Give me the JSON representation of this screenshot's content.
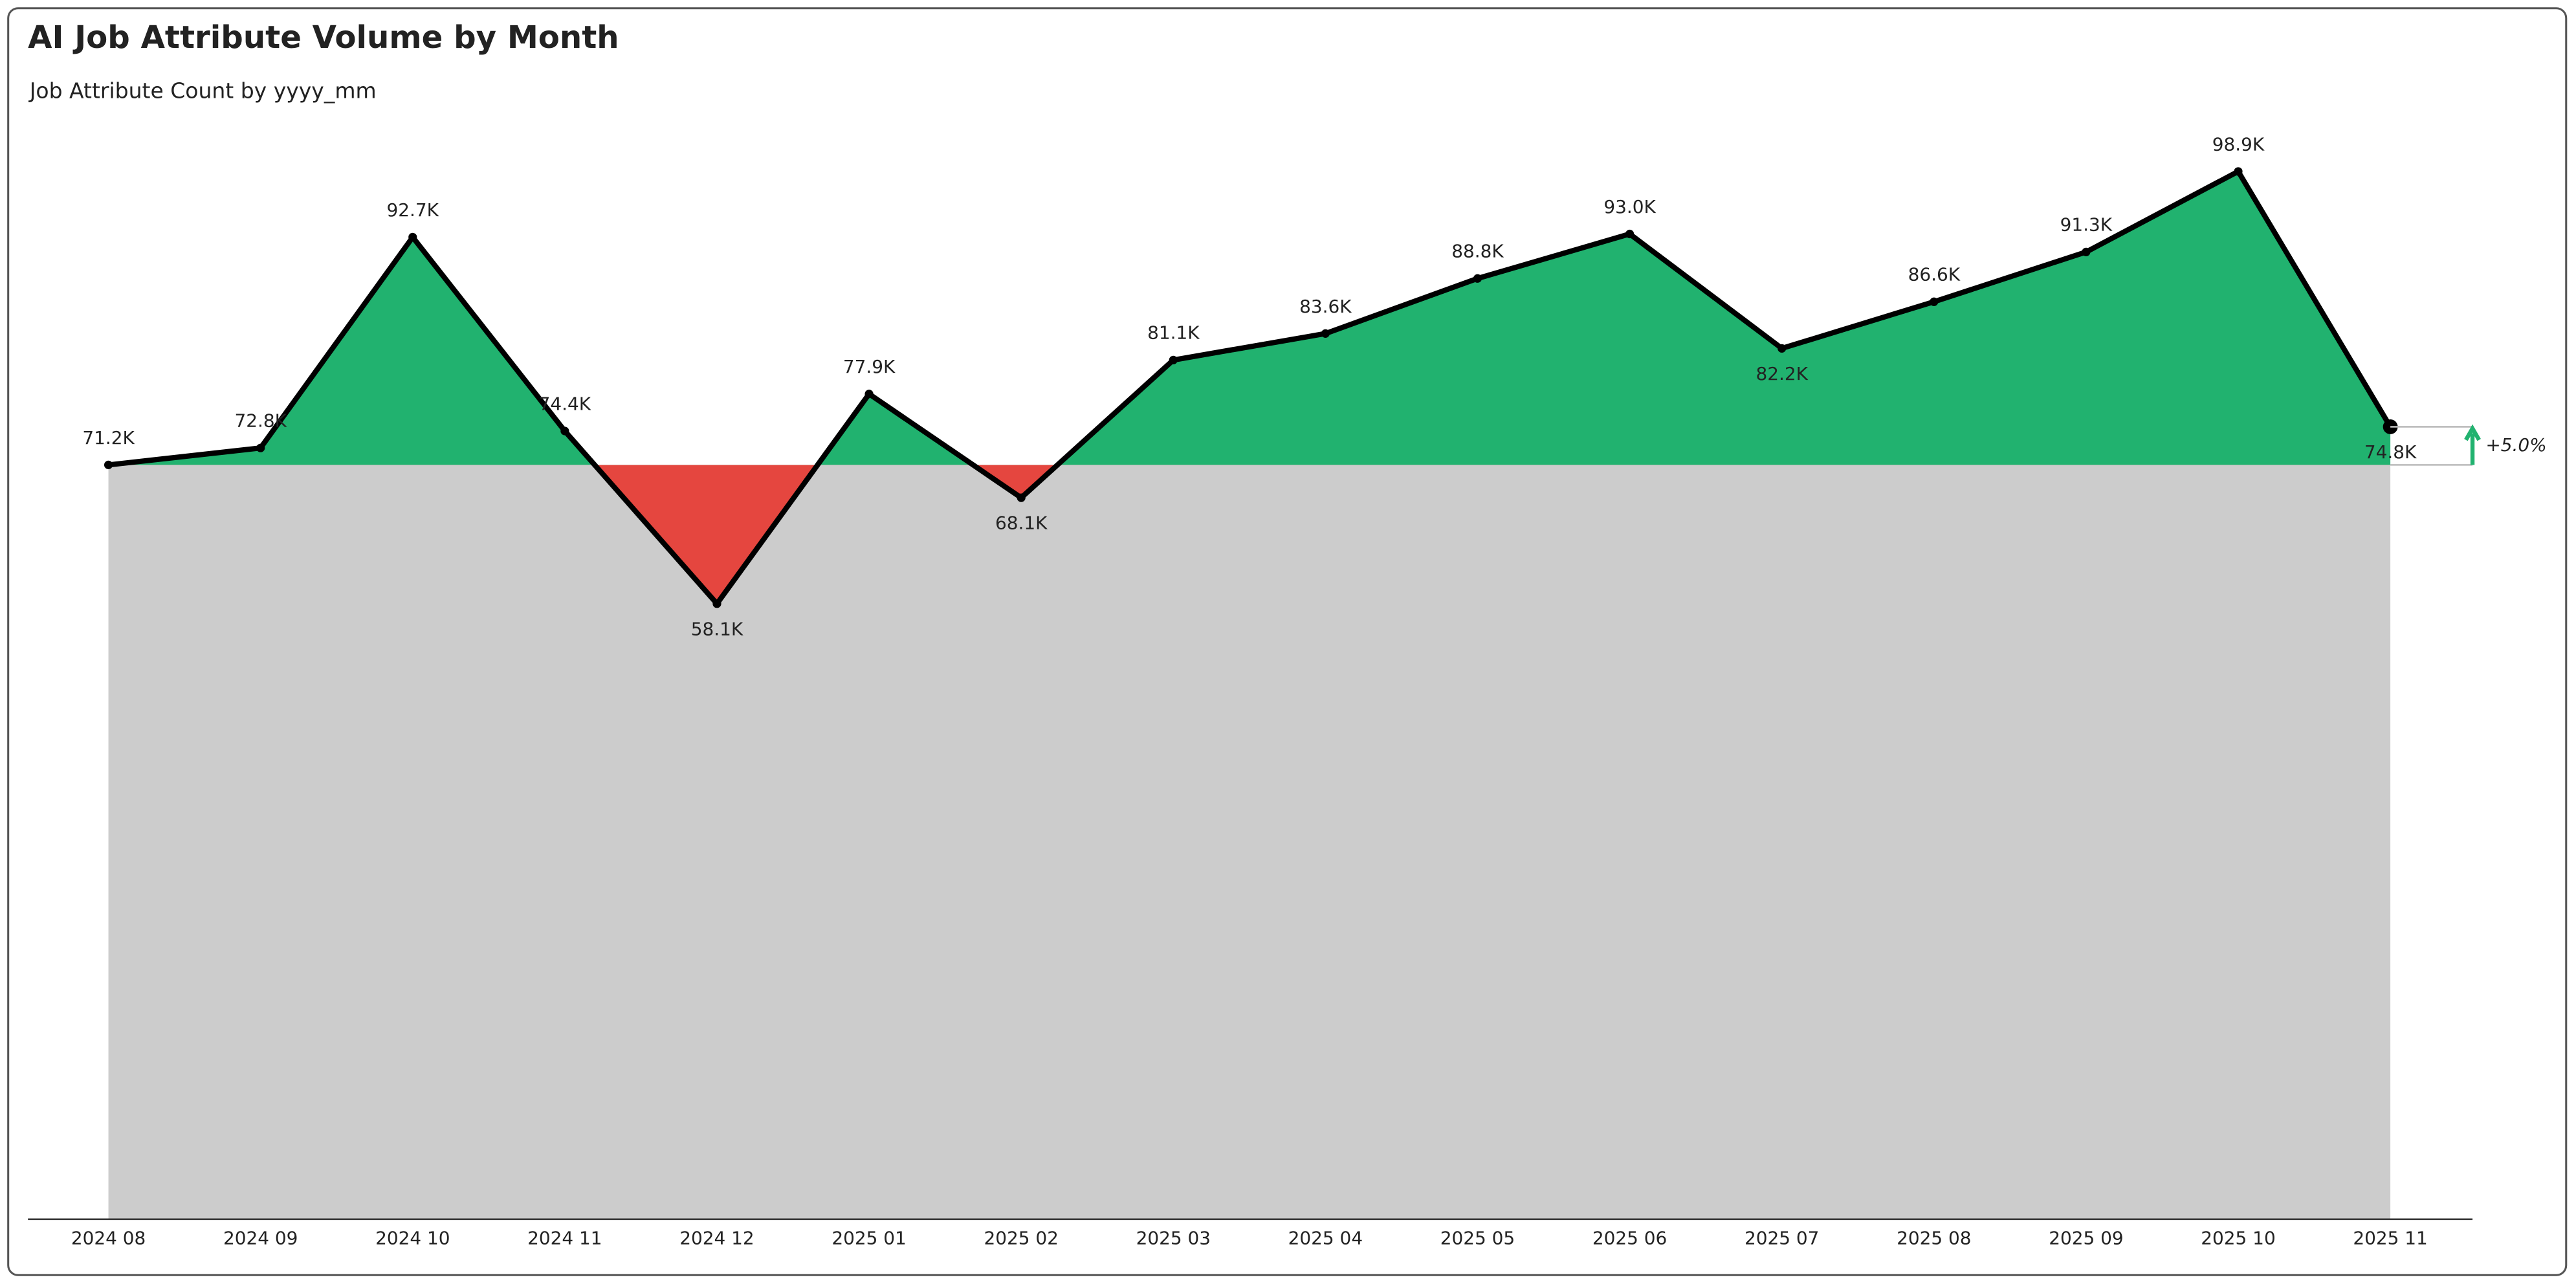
{
  "chart_data": {
    "type": "area-variance",
    "title": "AI Job Attribute Volume by Month",
    "subtitle": "Job Attribute Count by yyyy_mm",
    "categories": [
      "2024 08",
      "2024 09",
      "2024 10",
      "2024 11",
      "2024 12",
      "2025 01",
      "2025 02",
      "2025 03",
      "2025 04",
      "2025 05",
      "2025 06",
      "2025 07",
      "2025 08",
      "2025 09",
      "2025 10",
      "2025 11"
    ],
    "values": [
      71.2,
      72.8,
      92.7,
      74.4,
      58.1,
      77.9,
      68.1,
      81.1,
      83.6,
      88.8,
      93.0,
      82.2,
      86.6,
      91.3,
      98.9,
      74.8
    ],
    "value_labels": [
      "71.2K",
      "72.8K",
      "92.7K",
      "74.4K",
      "58.1K",
      "77.9K",
      "68.1K",
      "81.1K",
      "83.6K",
      "88.8K",
      "93.0K",
      "82.2K",
      "86.6K",
      "91.3K",
      "98.9K",
      "74.8K"
    ],
    "ylim": [
      0,
      105
    ],
    "colors": {
      "line": "#000000",
      "above": "#21b26f",
      "below": "#e5463f",
      "base": "#cccccc"
    },
    "variance_label": "+5.0%"
  }
}
